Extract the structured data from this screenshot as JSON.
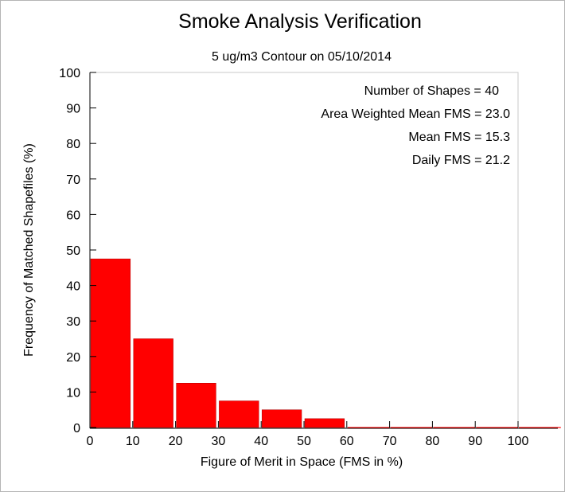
{
  "colors": {
    "bar": "#ff0000",
    "bar_edge": "#b00000",
    "axis": "#000000",
    "plot_border": "#c8c8c8"
  },
  "chart_data": {
    "type": "bar",
    "title": "Smoke Analysis Verification",
    "subtitle": "5 ug/m3 Contour on 05/10/2014",
    "xlabel": "Figure of Merit in Space (FMS in %)",
    "ylabel": "Frequency of Matched Shapefiles (%)",
    "xlim": [
      0,
      110
    ],
    "ylim": [
      0,
      100
    ],
    "xticks": [
      "0",
      "10",
      "20",
      "30",
      "40",
      "50",
      "60",
      "70",
      "80",
      "90",
      "100"
    ],
    "yticks": [
      "0",
      "10",
      "20",
      "30",
      "40",
      "50",
      "60",
      "70",
      "80",
      "90",
      "100"
    ],
    "bins": [
      {
        "x0": 0,
        "x1": 10,
        "value": 47.5
      },
      {
        "x0": 10,
        "x1": 20,
        "value": 25.0
      },
      {
        "x0": 20,
        "x1": 30,
        "value": 12.5
      },
      {
        "x0": 30,
        "x1": 40,
        "value": 7.5
      },
      {
        "x0": 40,
        "x1": 50,
        "value": 5.0
      },
      {
        "x0": 50,
        "x1": 60,
        "value": 2.5
      },
      {
        "x0": 60,
        "x1": 70,
        "value": 0
      },
      {
        "x0": 70,
        "x1": 80,
        "value": 0
      },
      {
        "x0": 80,
        "x1": 90,
        "value": 0
      },
      {
        "x0": 90,
        "x1": 100,
        "value": 0
      },
      {
        "x0": 100,
        "x1": 110,
        "value": 0
      }
    ],
    "annotations": [
      "Number of Shapes = 40",
      "Area Weighted Mean FMS = 23.0",
      "Mean FMS = 15.3",
      "Daily FMS = 21.2"
    ]
  }
}
